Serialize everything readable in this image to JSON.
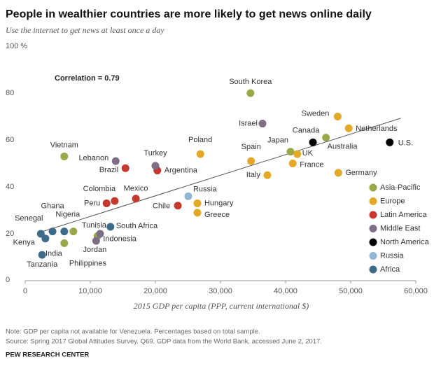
{
  "chart_data": {
    "type": "scatter",
    "title": "People in wealthier countries are more likely to get news online daily",
    "subtitle": "Use the internet to get news at least once a day",
    "annotation": "Correlation = 0.79",
    "xlabel": "2015 GDP per capita (PPP, current international $)",
    "xlim": [
      0,
      60000
    ],
    "xticks": [
      0,
      {
        "value": 10000,
        "label": "10,000"
      },
      {
        "value": 20000,
        "label": "20,000"
      },
      {
        "value": 30000,
        "label": "30,000"
      },
      {
        "value": 40000,
        "label": "40,000"
      },
      {
        "value": 50000,
        "label": "50,000"
      },
      {
        "value": 60000,
        "label": "60,000"
      }
    ],
    "ylim": [
      0,
      100
    ],
    "yticks": [
      0,
      20,
      40,
      60,
      80,
      {
        "value": 100,
        "label": "100 %"
      }
    ],
    "trend_line": {
      "x": [
        2250,
        57700
      ],
      "y": [
        20.6,
        69.3
      ]
    },
    "series": [
      {
        "name": "Asia-Pacific",
        "color": "#9aa84a",
        "labels": [
          "South Korea",
          "Australia",
          "Japan",
          "Vietnam",
          "Indonesia",
          "India",
          "Philippines"
        ],
        "x": [
          34600,
          46200,
          40750,
          6000,
          11100,
          6000,
          7400
        ],
        "values": [
          80,
          61,
          55,
          53,
          19,
          16,
          21
        ]
      },
      {
        "name": "Europe",
        "color": "#e3a826",
        "labels": [
          "Sweden",
          "Netherlands",
          "UK",
          "France",
          "Germany",
          "Spain",
          "Italy",
          "Poland",
          "Hungary",
          "Greece"
        ],
        "x": [
          48000,
          49700,
          41800,
          41100,
          48100,
          34700,
          37200,
          26900,
          26450,
          26450
        ],
        "values": [
          70,
          65,
          54,
          50,
          46,
          51,
          45,
          54,
          33,
          29
        ]
      },
      {
        "name": "Latin America",
        "color": "#c5382d",
        "labels": [
          "Chile",
          "Argentina",
          "Mexico",
          "Brazil",
          "Peru",
          "Colombia"
        ],
        "x": [
          23450,
          20300,
          17000,
          15400,
          12500,
          13750
        ],
        "values": [
          32,
          47,
          35,
          48,
          33,
          34
        ]
      },
      {
        "name": "Middle East",
        "color": "#7d6e86",
        "labels": [
          "Israel",
          "Turkey",
          "Lebanon",
          "Tunisia",
          "Jordan"
        ],
        "x": [
          36450,
          20000,
          13900,
          11500,
          10900
        ],
        "values": [
          67,
          49,
          51,
          20,
          17
        ]
      },
      {
        "name": "North America",
        "color": "#000000",
        "labels": [
          "Canada",
          "U.S."
        ],
        "x": [
          44200,
          56000
        ],
        "values": [
          59,
          59
        ]
      },
      {
        "name": "Russia",
        "color": "#92b6d5",
        "labels": [
          "Russia"
        ],
        "x": [
          25050
        ],
        "values": [
          36
        ]
      },
      {
        "name": "Africa",
        "color": "#3f6b8a",
        "labels": [
          "South Africa",
          "Senegal",
          "Ghana",
          "Nigeria",
          "Kenya",
          "Tanzania"
        ],
        "x": [
          13100,
          2400,
          4200,
          6000,
          3100,
          2600
        ],
        "values": [
          23,
          20,
          21,
          21,
          18,
          11
        ]
      }
    ],
    "notes": "Note: GDP per capita not available for Venezuela. Percentages based on total sample.",
    "source": "Source: Spring 2017 Global Attitudes Survey. Q69. GDP data from the World Bank, accessed June 2, 2017.",
    "credit": "PEW RESEARCH CENTER"
  }
}
